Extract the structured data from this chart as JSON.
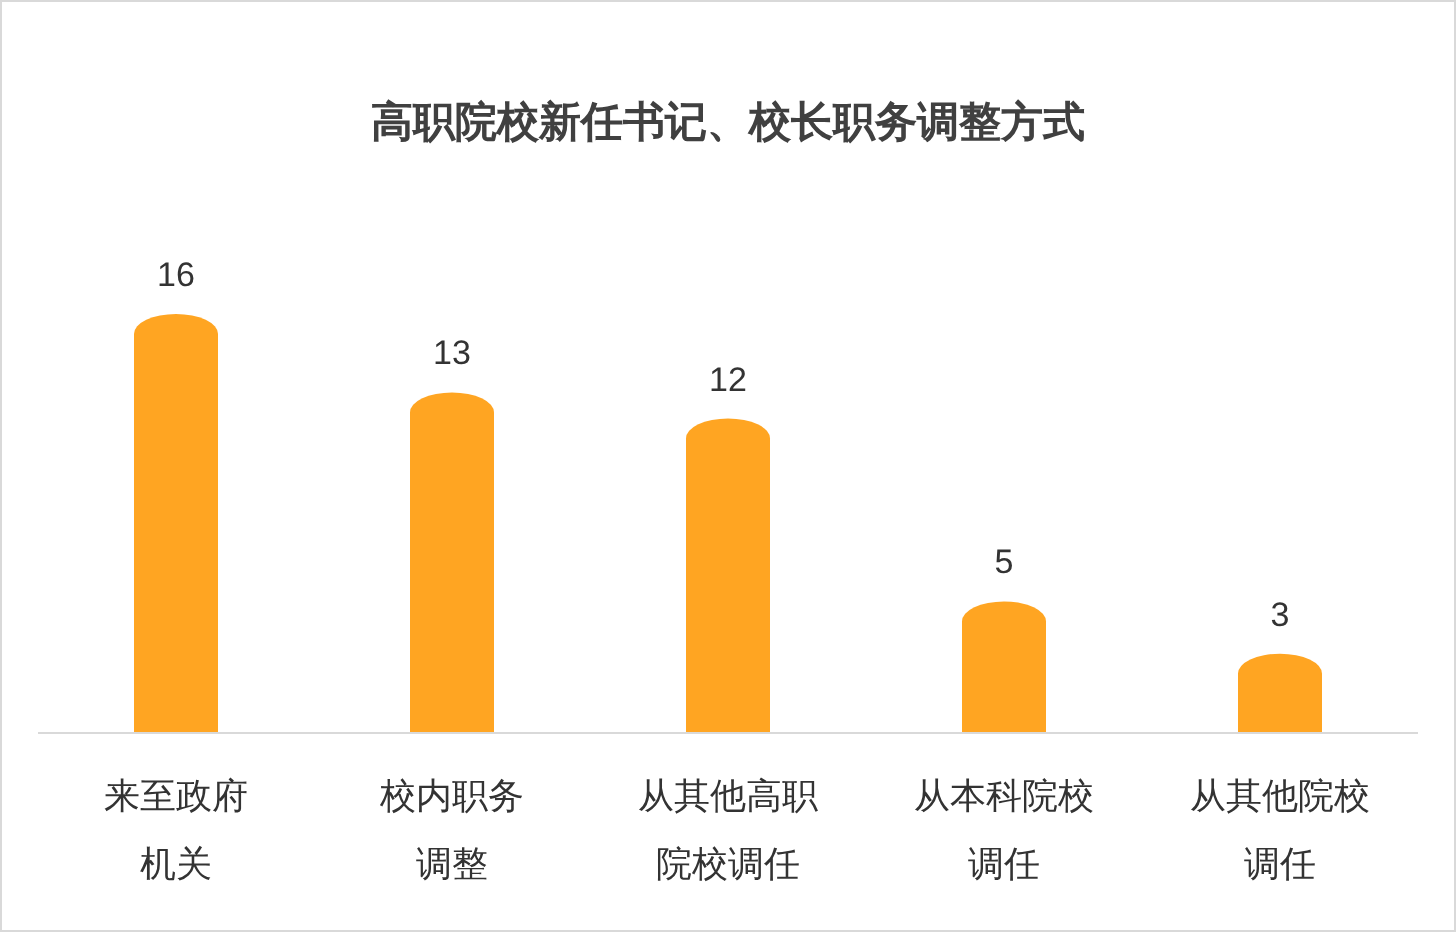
{
  "chart_data": {
    "type": "bar",
    "title": "高职院校新任书记、校长职务调整方式",
    "categories": [
      "来至政府机关",
      "校内职务调整",
      "从其他高职院校调任",
      "从本科院校调任",
      "从其他院校调任"
    ],
    "values": [
      16,
      13,
      12,
      5,
      3
    ],
    "color": "#ffa522",
    "data_labels": true
  }
}
